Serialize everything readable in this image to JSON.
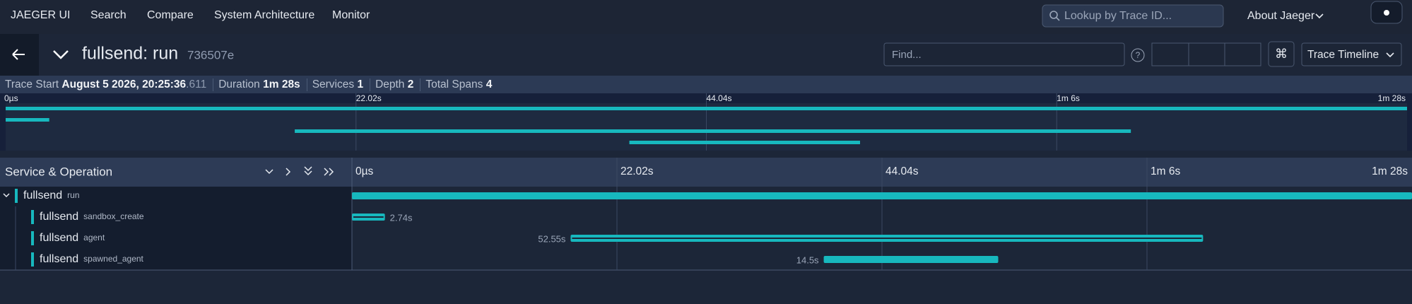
{
  "nav": {
    "brand": "JAEGER UI",
    "links": [
      "Search",
      "Compare",
      "System Architecture",
      "Monitor"
    ],
    "search_placeholder": "Lookup by Trace ID...",
    "about": "About Jaeger"
  },
  "trace": {
    "title": "fullsend: run",
    "trace_id": "736507e",
    "find_placeholder": "Find...",
    "help": "?",
    "shortcut": "⌘",
    "view": "Trace Timeline"
  },
  "summary": [
    {
      "label": "Trace Start",
      "value": "August 5 2026, 20:25:36",
      "value_suffix": ".611"
    },
    {
      "label": "Duration",
      "value": "1m 28s"
    },
    {
      "label": "Services",
      "value": 1
    },
    {
      "label": "Depth",
      "value": 2
    },
    {
      "label": "Total Spans",
      "value": 4
    }
  ],
  "timeline": {
    "header": "Service & Operation",
    "xlim": [
      0,
      88.08
    ],
    "ticks": [
      {
        "value": 0,
        "label": "0µs"
      },
      {
        "value": 22.02,
        "label": "22.02s"
      },
      {
        "value": 44.04,
        "label": "44.04s"
      },
      {
        "value": 66.06,
        "label": "1m 6s"
      },
      {
        "value": 88.08,
        "label": "1m 28s"
      }
    ],
    "spans": [
      {
        "service": "fullsend",
        "operation": "run",
        "depth": 0,
        "start": 0,
        "duration": 88.08
      },
      {
        "service": "fullsend",
        "operation": "sandbox_create",
        "depth": 1,
        "start": 0,
        "duration": 2.74,
        "duration_label": "2.74s"
      },
      {
        "service": "fullsend",
        "operation": "agent",
        "depth": 1,
        "start": 18.17,
        "duration": 52.55,
        "duration_label": "52.55s"
      },
      {
        "service": "fullsend",
        "operation": "spawned_agent",
        "depth": 1,
        "start": 39.2,
        "duration": 14.5,
        "duration_label": "14.5s"
      }
    ]
  }
}
